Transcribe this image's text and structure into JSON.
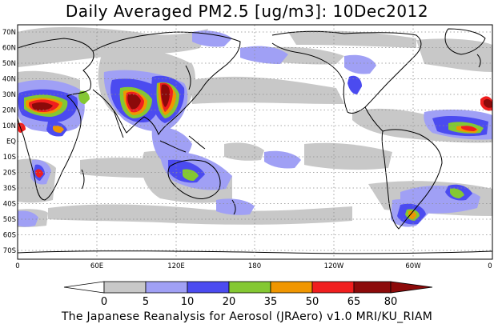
{
  "title": "Daily Averaged PM2.5 [ug/m3]: 10Dec2012",
  "footer": "The Japanese Reanalysis for Aerosol (JRAero) v1.0 MRI/KU_RIAM",
  "latitude_labels": [
    "70N",
    "60N",
    "50N",
    "40N",
    "30N",
    "20N",
    "10N",
    "EQ",
    "10S",
    "20S",
    "30S",
    "40S",
    "50S",
    "60S",
    "70S"
  ],
  "longitude_labels": [
    "0",
    "60E",
    "120E",
    "180",
    "120W",
    "60W",
    "0"
  ],
  "colorbar": {
    "breaks": [
      "0",
      "5",
      "10",
      "20",
      "35",
      "50",
      "65",
      "80"
    ],
    "colors": [
      "#ffffff",
      "#c8c8c8",
      "#a0a0f5",
      "#4b4bf0",
      "#84c832",
      "#f09600",
      "#f01e1e",
      "#8c0a0a"
    ]
  },
  "colors": {
    "land_outline": "#000000",
    "grid": "#8c8c8c"
  }
}
